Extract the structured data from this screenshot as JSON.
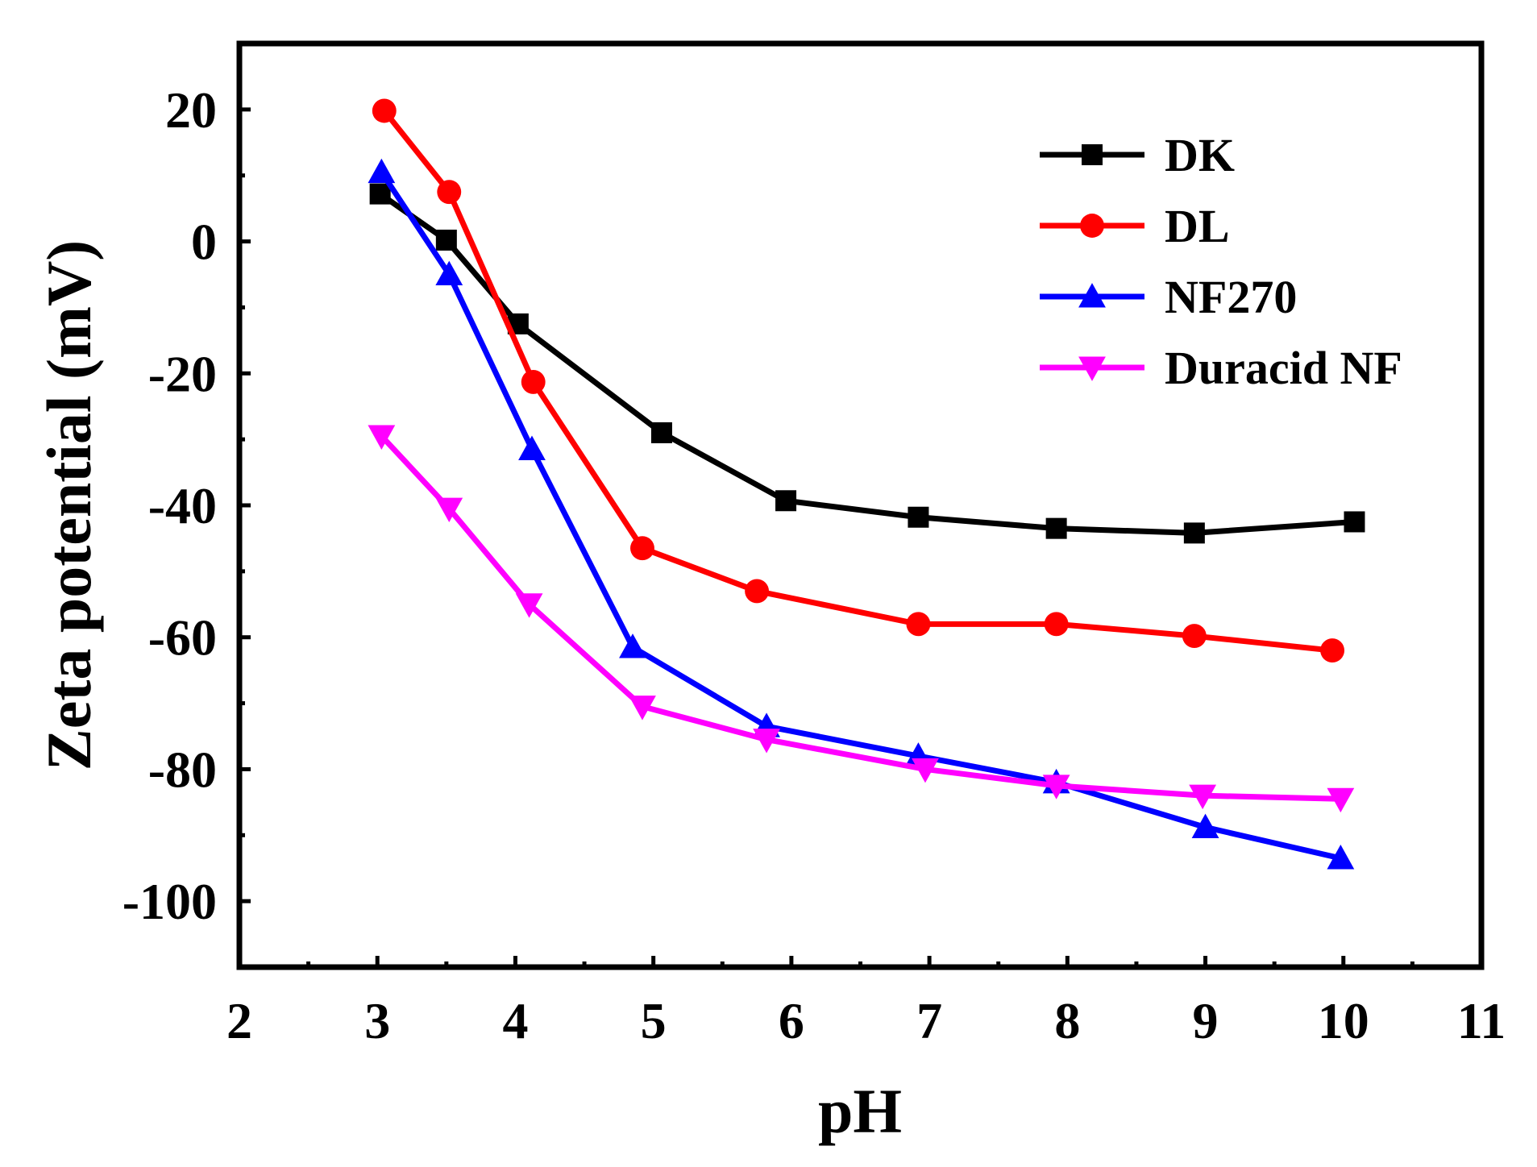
{
  "chart_data": {
    "type": "line",
    "title": "",
    "xlabel": "pH",
    "ylabel": "Zeta potential (mV)",
    "xlim": [
      2,
      11
    ],
    "ylim": [
      -110,
      30
    ],
    "xticks": [
      2,
      3,
      4,
      5,
      6,
      7,
      8,
      9,
      10,
      11
    ],
    "yticks": [
      -100,
      -80,
      -60,
      -40,
      -20,
      0,
      20
    ],
    "xtick_labels": [
      "2",
      "3",
      "4",
      "5",
      "6",
      "7",
      "8",
      "9",
      "10",
      "11"
    ],
    "ytick_labels": [
      "-100",
      "-80",
      "-60",
      "-40",
      "-20",
      "0",
      "20"
    ],
    "legend_position": "top-right",
    "series": [
      {
        "name": "DK",
        "color": "#000000",
        "marker": "square",
        "x": [
          3.02,
          3.5,
          4.02,
          5.06,
          5.96,
          6.92,
          7.92,
          8.92,
          10.08
        ],
        "y": [
          7.2,
          0.2,
          -12.5,
          -29,
          -39.3,
          -41.8,
          -43.5,
          -44.2,
          -42.5
        ]
      },
      {
        "name": "DL",
        "color": "#ff0000",
        "marker": "circle",
        "x": [
          3.05,
          3.52,
          4.13,
          4.92,
          5.75,
          6.92,
          7.92,
          8.92,
          9.92
        ],
        "y": [
          19.8,
          7.5,
          -21.3,
          -46.5,
          -53,
          -58,
          -58,
          -59.8,
          -62
        ]
      },
      {
        "name": "NF270",
        "color": "#0000ff",
        "marker": "triangle-up",
        "x": [
          3.03,
          3.52,
          4.12,
          4.85,
          5.82,
          6.92,
          7.92,
          9.0,
          9.98
        ],
        "y": [
          10.5,
          -5,
          -31.5,
          -61.5,
          -73.5,
          -78,
          -82,
          -88.8,
          -93.5
        ]
      },
      {
        "name": "Duracid NF",
        "color": "#ff00ff",
        "marker": "triangle-down",
        "x": [
          3.03,
          3.52,
          4.1,
          4.92,
          5.82,
          6.97,
          7.92,
          8.98,
          9.98
        ],
        "y": [
          -29.5,
          -40.5,
          -55,
          -70.5,
          -75.5,
          -80,
          -82.5,
          -84,
          -84.5
        ]
      }
    ]
  }
}
